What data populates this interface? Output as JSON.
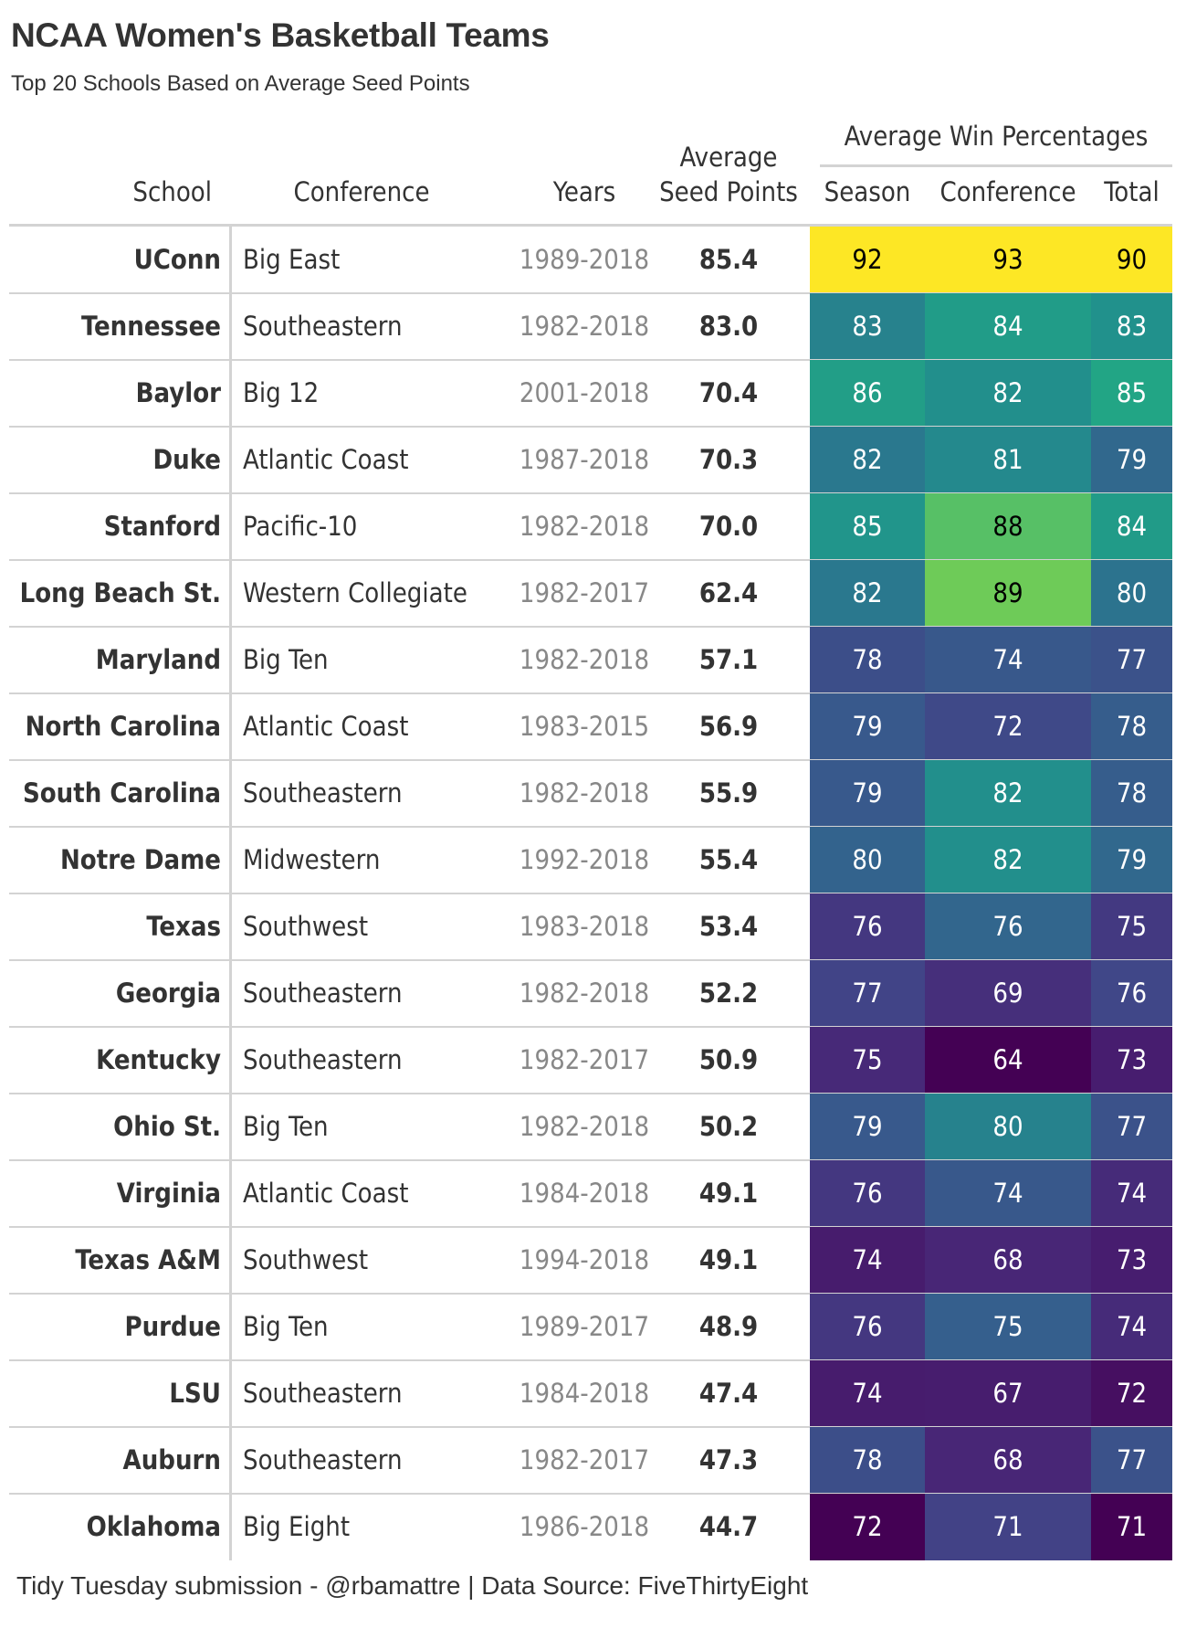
{
  "title": "NCAA Women's Basketball Teams",
  "subtitle": "Top 20 Schools Based on Average Seed Points",
  "footer": "Tidy Tuesday submission - @rbamattre | Data Source: FiveThirtyEight",
  "columns": {
    "school": "School",
    "conference": "Conference",
    "years": "Years",
    "seed_line1": "Average",
    "seed_line2": "Seed Points",
    "spanner": "Average Win Percentages",
    "season": "Season",
    "conf_pct": "Conference",
    "total": "Total"
  },
  "colors": {
    "palette": "viridis",
    "light_text": "#ffffff",
    "dark_text": "#000000",
    "grid": "#d3d3d3"
  },
  "chart_data": {
    "type": "table",
    "title": "NCAA Women's Basketball Teams",
    "subtitle": "Top 20 Schools Based on Average Seed Points",
    "color_scale": "viridis",
    "color_range": {
      "season": [
        72,
        92
      ],
      "conference": [
        64,
        93
      ],
      "total": [
        71,
        90
      ]
    },
    "rows": [
      {
        "school": "UConn",
        "conference": "Big East",
        "years": "1989-2018",
        "seed": "85.4",
        "season": 92,
        "conf": 93,
        "total": 90
      },
      {
        "school": "Tennessee",
        "conference": "Southeastern",
        "years": "1982-2018",
        "seed": "83.0",
        "season": 83,
        "conf": 84,
        "total": 83
      },
      {
        "school": "Baylor",
        "conference": "Big 12",
        "years": "2001-2018",
        "seed": "70.4",
        "season": 86,
        "conf": 82,
        "total": 85
      },
      {
        "school": "Duke",
        "conference": "Atlantic Coast",
        "years": "1987-2018",
        "seed": "70.3",
        "season": 82,
        "conf": 81,
        "total": 79
      },
      {
        "school": "Stanford",
        "conference": "Pacific-10",
        "years": "1982-2018",
        "seed": "70.0",
        "season": 85,
        "conf": 88,
        "total": 84
      },
      {
        "school": "Long Beach St.",
        "conference": "Western Collegiate",
        "years": "1982-2017",
        "seed": "62.4",
        "season": 82,
        "conf": 89,
        "total": 80
      },
      {
        "school": "Maryland",
        "conference": "Big Ten",
        "years": "1982-2018",
        "seed": "57.1",
        "season": 78,
        "conf": 74,
        "total": 77
      },
      {
        "school": "North Carolina",
        "conference": "Atlantic Coast",
        "years": "1983-2015",
        "seed": "56.9",
        "season": 79,
        "conf": 72,
        "total": 78
      },
      {
        "school": "South Carolina",
        "conference": "Southeastern",
        "years": "1982-2018",
        "seed": "55.9",
        "season": 79,
        "conf": 82,
        "total": 78
      },
      {
        "school": "Notre Dame",
        "conference": "Midwestern",
        "years": "1992-2018",
        "seed": "55.4",
        "season": 80,
        "conf": 82,
        "total": 79
      },
      {
        "school": "Texas",
        "conference": "Southwest",
        "years": "1983-2018",
        "seed": "53.4",
        "season": 76,
        "conf": 76,
        "total": 75
      },
      {
        "school": "Georgia",
        "conference": "Southeastern",
        "years": "1982-2018",
        "seed": "52.2",
        "season": 77,
        "conf": 69,
        "total": 76
      },
      {
        "school": "Kentucky",
        "conference": "Southeastern",
        "years": "1982-2017",
        "seed": "50.9",
        "season": 75,
        "conf": 64,
        "total": 73
      },
      {
        "school": "Ohio St.",
        "conference": "Big Ten",
        "years": "1982-2018",
        "seed": "50.2",
        "season": 79,
        "conf": 80,
        "total": 77
      },
      {
        "school": "Virginia",
        "conference": "Atlantic Coast",
        "years": "1984-2018",
        "seed": "49.1",
        "season": 76,
        "conf": 74,
        "total": 74
      },
      {
        "school": "Texas A&M",
        "conference": "Southwest",
        "years": "1994-2018",
        "seed": "49.1",
        "season": 74,
        "conf": 68,
        "total": 73
      },
      {
        "school": "Purdue",
        "conference": "Big Ten",
        "years": "1989-2017",
        "seed": "48.9",
        "season": 76,
        "conf": 75,
        "total": 74
      },
      {
        "school": "LSU",
        "conference": "Southeastern",
        "years": "1984-2018",
        "seed": "47.4",
        "season": 74,
        "conf": 67,
        "total": 72
      },
      {
        "school": "Auburn",
        "conference": "Southeastern",
        "years": "1982-2017",
        "seed": "47.3",
        "season": 78,
        "conf": 68,
        "total": 77
      },
      {
        "school": "Oklahoma",
        "conference": "Big Eight",
        "years": "1986-2018",
        "seed": "44.7",
        "season": 72,
        "conf": 71,
        "total": 71
      }
    ]
  }
}
